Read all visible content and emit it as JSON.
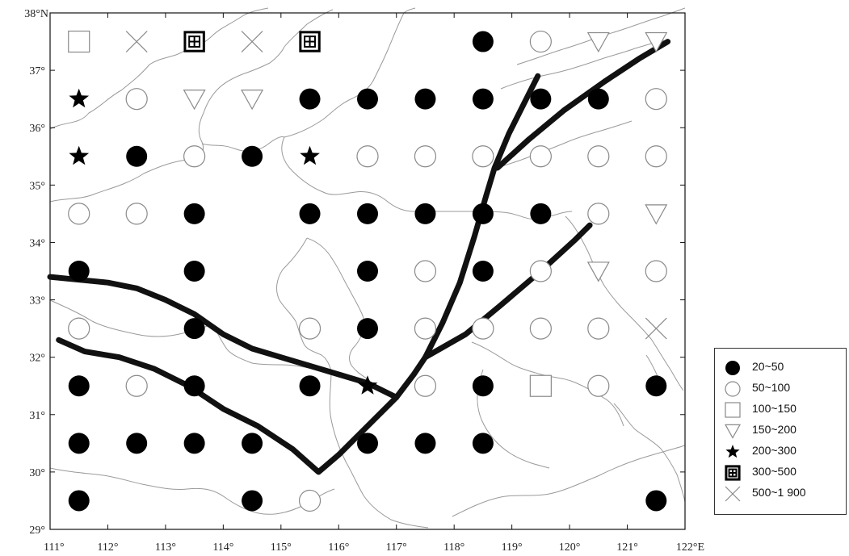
{
  "map": {
    "x_axis": {
      "min": 111,
      "max": 122,
      "ticks": [
        111,
        112,
        113,
        114,
        115,
        116,
        117,
        118,
        119,
        120,
        121,
        122
      ],
      "labels": [
        "111°",
        "112°",
        "113°",
        "114°",
        "115°",
        "116°",
        "117°",
        "118°",
        "119°",
        "120°",
        "121°",
        "122°E"
      ]
    },
    "y_axis": {
      "min": 29,
      "max": 38,
      "ticks": [
        29,
        30,
        31,
        32,
        33,
        34,
        35,
        36,
        37,
        38
      ],
      "labels": [
        "29°",
        "30°",
        "31°",
        "32°",
        "33°",
        "34°",
        "35°",
        "36°",
        "37°",
        "38°N"
      ]
    },
    "colors": {
      "symbol_dark": "#000000",
      "symbol_light": "#8a8a8a",
      "boundary": "#9a9a9a",
      "fault": "#111111"
    },
    "classes": [
      {
        "id": "c1",
        "label": "20~50",
        "icon": "filled-circle-icon"
      },
      {
        "id": "c2",
        "label": "50~100",
        "icon": "open-circle-icon"
      },
      {
        "id": "c3",
        "label": "100~150",
        "icon": "open-square-icon"
      },
      {
        "id": "c4",
        "label": "150~200",
        "icon": "open-triangle-icon"
      },
      {
        "id": "c5",
        "label": "200~300",
        "icon": "star-icon"
      },
      {
        "id": "c6",
        "label": "300~500",
        "icon": "boxed-grid-icon"
      },
      {
        "id": "c7",
        "label": "500~1 900",
        "icon": "cross-icon"
      }
    ],
    "points": [
      {
        "lon": 111.5,
        "lat": 37.5,
        "c": "c3"
      },
      {
        "lon": 112.5,
        "lat": 37.5,
        "c": "c7"
      },
      {
        "lon": 113.5,
        "lat": 37.5,
        "c": "c6"
      },
      {
        "lon": 114.5,
        "lat": 37.5,
        "c": "c7"
      },
      {
        "lon": 115.5,
        "lat": 37.5,
        "c": "c6"
      },
      {
        "lon": 118.5,
        "lat": 37.5,
        "c": "c1"
      },
      {
        "lon": 119.5,
        "lat": 37.5,
        "c": "c2"
      },
      {
        "lon": 120.5,
        "lat": 37.5,
        "c": "c4"
      },
      {
        "lon": 121.5,
        "lat": 37.5,
        "c": "c4"
      },
      {
        "lon": 111.5,
        "lat": 36.5,
        "c": "c5"
      },
      {
        "lon": 112.5,
        "lat": 36.5,
        "c": "c2"
      },
      {
        "lon": 113.5,
        "lat": 36.5,
        "c": "c4"
      },
      {
        "lon": 114.5,
        "lat": 36.5,
        "c": "c4"
      },
      {
        "lon": 115.5,
        "lat": 36.5,
        "c": "c1"
      },
      {
        "lon": 116.5,
        "lat": 36.5,
        "c": "c1"
      },
      {
        "lon": 117.5,
        "lat": 36.5,
        "c": "c1"
      },
      {
        "lon": 118.5,
        "lat": 36.5,
        "c": "c1"
      },
      {
        "lon": 119.5,
        "lat": 36.5,
        "c": "c1"
      },
      {
        "lon": 120.5,
        "lat": 36.5,
        "c": "c1"
      },
      {
        "lon": 121.5,
        "lat": 36.5,
        "c": "c2"
      },
      {
        "lon": 111.5,
        "lat": 35.5,
        "c": "c5"
      },
      {
        "lon": 112.5,
        "lat": 35.5,
        "c": "c1"
      },
      {
        "lon": 113.5,
        "lat": 35.5,
        "c": "c2"
      },
      {
        "lon": 114.5,
        "lat": 35.5,
        "c": "c1"
      },
      {
        "lon": 115.5,
        "lat": 35.5,
        "c": "c5"
      },
      {
        "lon": 116.5,
        "lat": 35.5,
        "c": "c2"
      },
      {
        "lon": 117.5,
        "lat": 35.5,
        "c": "c2"
      },
      {
        "lon": 118.5,
        "lat": 35.5,
        "c": "c2"
      },
      {
        "lon": 119.5,
        "lat": 35.5,
        "c": "c2"
      },
      {
        "lon": 120.5,
        "lat": 35.5,
        "c": "c2"
      },
      {
        "lon": 121.5,
        "lat": 35.5,
        "c": "c2"
      },
      {
        "lon": 111.5,
        "lat": 34.5,
        "c": "c2"
      },
      {
        "lon": 112.5,
        "lat": 34.5,
        "c": "c2"
      },
      {
        "lon": 113.5,
        "lat": 34.5,
        "c": "c1"
      },
      {
        "lon": 115.5,
        "lat": 34.5,
        "c": "c1"
      },
      {
        "lon": 116.5,
        "lat": 34.5,
        "c": "c1"
      },
      {
        "lon": 117.5,
        "lat": 34.5,
        "c": "c1"
      },
      {
        "lon": 118.5,
        "lat": 34.5,
        "c": "c1"
      },
      {
        "lon": 119.5,
        "lat": 34.5,
        "c": "c1"
      },
      {
        "lon": 120.5,
        "lat": 34.5,
        "c": "c2"
      },
      {
        "lon": 121.5,
        "lat": 34.5,
        "c": "c4"
      },
      {
        "lon": 111.5,
        "lat": 33.5,
        "c": "c1"
      },
      {
        "lon": 113.5,
        "lat": 33.5,
        "c": "c1"
      },
      {
        "lon": 116.5,
        "lat": 33.5,
        "c": "c1"
      },
      {
        "lon": 117.5,
        "lat": 33.5,
        "c": "c2"
      },
      {
        "lon": 118.5,
        "lat": 33.5,
        "c": "c1"
      },
      {
        "lon": 119.5,
        "lat": 33.5,
        "c": "c2"
      },
      {
        "lon": 120.5,
        "lat": 33.5,
        "c": "c4"
      },
      {
        "lon": 121.5,
        "lat": 33.5,
        "c": "c2"
      },
      {
        "lon": 111.5,
        "lat": 32.5,
        "c": "c2"
      },
      {
        "lon": 113.5,
        "lat": 32.5,
        "c": "c1"
      },
      {
        "lon": 115.5,
        "lat": 32.5,
        "c": "c2"
      },
      {
        "lon": 116.5,
        "lat": 32.5,
        "c": "c1"
      },
      {
        "lon": 117.5,
        "lat": 32.5,
        "c": "c2"
      },
      {
        "lon": 118.5,
        "lat": 32.5,
        "c": "c2"
      },
      {
        "lon": 119.5,
        "lat": 32.5,
        "c": "c2"
      },
      {
        "lon": 120.5,
        "lat": 32.5,
        "c": "c2"
      },
      {
        "lon": 121.5,
        "lat": 32.5,
        "c": "c7"
      },
      {
        "lon": 111.5,
        "lat": 31.5,
        "c": "c1"
      },
      {
        "lon": 112.5,
        "lat": 31.5,
        "c": "c2"
      },
      {
        "lon": 113.5,
        "lat": 31.5,
        "c": "c1"
      },
      {
        "lon": 115.5,
        "lat": 31.5,
        "c": "c1"
      },
      {
        "lon": 116.5,
        "lat": 31.5,
        "c": "c5"
      },
      {
        "lon": 117.5,
        "lat": 31.5,
        "c": "c2"
      },
      {
        "lon": 118.5,
        "lat": 31.5,
        "c": "c1"
      },
      {
        "lon": 119.5,
        "lat": 31.5,
        "c": "c3"
      },
      {
        "lon": 120.5,
        "lat": 31.5,
        "c": "c2"
      },
      {
        "lon": 121.5,
        "lat": 31.5,
        "c": "c1"
      },
      {
        "lon": 111.5,
        "lat": 30.5,
        "c": "c1"
      },
      {
        "lon": 112.5,
        "lat": 30.5,
        "c": "c1"
      },
      {
        "lon": 113.5,
        "lat": 30.5,
        "c": "c1"
      },
      {
        "lon": 114.5,
        "lat": 30.5,
        "c": "c1"
      },
      {
        "lon": 116.5,
        "lat": 30.5,
        "c": "c1"
      },
      {
        "lon": 117.5,
        "lat": 30.5,
        "c": "c1"
      },
      {
        "lon": 118.5,
        "lat": 30.5,
        "c": "c1"
      },
      {
        "lon": 111.5,
        "lat": 29.5,
        "c": "c1"
      },
      {
        "lon": 114.5,
        "lat": 29.5,
        "c": "c1"
      },
      {
        "lon": 115.5,
        "lat": 29.5,
        "c": "c2"
      },
      {
        "lon": 121.5,
        "lat": 29.5,
        "c": "c1"
      }
    ],
    "faults": [
      [
        [
          111.0,
          33.4
        ],
        [
          111.5,
          33.35
        ],
        [
          112.0,
          33.3
        ],
        [
          112.5,
          33.2
        ],
        [
          113.0,
          33.0
        ],
        [
          113.5,
          32.75
        ],
        [
          114.0,
          32.4
        ],
        [
          114.5,
          32.15
        ],
        [
          115.0,
          32.0
        ],
        [
          115.5,
          31.85
        ],
        [
          116.0,
          31.7
        ],
        [
          116.5,
          31.55
        ],
        [
          117.0,
          31.3
        ]
      ],
      [
        [
          111.15,
          32.3
        ],
        [
          111.6,
          32.1
        ],
        [
          112.2,
          32.0
        ],
        [
          112.8,
          31.8
        ],
        [
          113.4,
          31.5
        ],
        [
          114.0,
          31.1
        ],
        [
          114.6,
          30.8
        ],
        [
          115.2,
          30.4
        ],
        [
          115.65,
          30.0
        ],
        [
          116.0,
          30.3
        ],
        [
          116.5,
          30.8
        ],
        [
          117.0,
          31.3
        ],
        [
          117.3,
          31.7
        ],
        [
          117.5,
          32.0
        ]
      ],
      [
        [
          117.5,
          32.0
        ],
        [
          117.8,
          32.6
        ],
        [
          118.1,
          33.3
        ],
        [
          118.35,
          34.1
        ],
        [
          118.55,
          34.8
        ],
        [
          118.7,
          35.3
        ],
        [
          118.95,
          35.9
        ],
        [
          119.2,
          36.4
        ],
        [
          119.45,
          36.9
        ]
      ],
      [
        [
          118.75,
          35.3
        ],
        [
          119.3,
          35.8
        ],
        [
          119.9,
          36.3
        ],
        [
          120.6,
          36.8
        ],
        [
          121.2,
          37.2
        ],
        [
          121.7,
          37.5
        ]
      ],
      [
        [
          117.5,
          32.0
        ],
        [
          118.2,
          32.4
        ],
        [
          118.8,
          32.9
        ],
        [
          119.5,
          33.5
        ],
        [
          120.1,
          34.05
        ],
        [
          120.35,
          34.3
        ]
      ]
    ]
  }
}
